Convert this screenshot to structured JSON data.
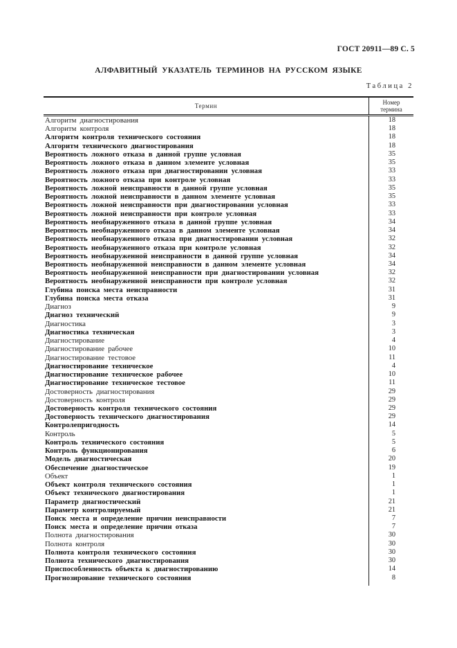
{
  "page": {
    "header": "ГОСТ 20911—89 С. 5",
    "title": "АЛФАВИТНЫЙ УКАЗАТЕЛЬ ТЕРМИНОВ НА РУССКОМ ЯЗЫКЕ",
    "table_label": "Таблица 2"
  },
  "table": {
    "col_term_header": "Термин",
    "col_num_header_line1": "Номер",
    "col_num_header_line2": "термина",
    "rows": [
      {
        "term": "Алгоритм диагностирования",
        "num": 18,
        "bold": false
      },
      {
        "term": "Алгоритм контроля",
        "num": 18,
        "bold": false
      },
      {
        "term": "Алгоритм контроля технического состояния",
        "num": 18,
        "bold": true
      },
      {
        "term": "Алгоритм технического диагностирования",
        "num": 18,
        "bold": true
      },
      {
        "term": "Вероятность ложного отказа в данной группе условная",
        "num": 35,
        "bold": true
      },
      {
        "term": "Вероятность ложного отказа в данном элементе условная",
        "num": 35,
        "bold": true
      },
      {
        "term": "Вероятность ложного отказа при диагностировании условная",
        "num": 33,
        "bold": true
      },
      {
        "term": "Вероятность ложного отказа при контроле условная",
        "num": 33,
        "bold": true
      },
      {
        "term": "Вероятность ложной неисправности в данной группе условная",
        "num": 35,
        "bold": true
      },
      {
        "term": "Вероятность ложной неисправности в данном элементе условная",
        "num": 35,
        "bold": true
      },
      {
        "term": "Вероятность ложной неисправности при диагностировании условная",
        "num": 33,
        "bold": true
      },
      {
        "term": "Вероятность ложной неисправности при контроле условная",
        "num": 33,
        "bold": true
      },
      {
        "term": "Вероятность необнаруженного отказа в данной группе условная",
        "num": 34,
        "bold": true
      },
      {
        "term": "Вероятность необнаруженного отказа в данном элементе условная",
        "num": 34,
        "bold": true
      },
      {
        "term": "Вероятность необнаруженного отказа при диагностировании условная",
        "num": 32,
        "bold": true
      },
      {
        "term": "Вероятность необнаруженного отказа при контроле условная",
        "num": 32,
        "bold": true
      },
      {
        "term": "Вероятность необнаруженной неисправности в данной группе условная",
        "num": 34,
        "bold": true
      },
      {
        "term": "Вероятность необнаруженной неисправности в данном элементе условная",
        "num": 34,
        "bold": true
      },
      {
        "term": "Вероятность необнаруженной неисправности при диагностировании условная",
        "num": 32,
        "bold": true
      },
      {
        "term": "Вероятность необнаруженной неисправности при контроле условная",
        "num": 32,
        "bold": true
      },
      {
        "term": "Глубина поиска места неисправности",
        "num": 31,
        "bold": true
      },
      {
        "term": "Глубина поиска места отказа",
        "num": 31,
        "bold": true
      },
      {
        "term": "Диагноз",
        "num": 9,
        "bold": false
      },
      {
        "term": "Диагноз технический",
        "num": 9,
        "bold": true
      },
      {
        "term": "Диагностика",
        "num": 3,
        "bold": false
      },
      {
        "term": "Диагностика техническая",
        "num": 3,
        "bold": true
      },
      {
        "term": "Диагностирование",
        "num": 4,
        "bold": false
      },
      {
        "term": "Диагностирование рабочее",
        "num": 10,
        "bold": false
      },
      {
        "term": "Диагностирование тестовое",
        "num": 11,
        "bold": false
      },
      {
        "term": "Диагностирование техническое",
        "num": 4,
        "bold": true
      },
      {
        "term": "Диагностирование техническое рабочее",
        "num": 10,
        "bold": true
      },
      {
        "term": "Диагностирование техническое тестовое",
        "num": 11,
        "bold": true
      },
      {
        "term": "Достоверность диагностирования",
        "num": 29,
        "bold": false
      },
      {
        "term": "Достоверность контроля",
        "num": 29,
        "bold": false
      },
      {
        "term": "Достоверность контроля технического состояния",
        "num": 29,
        "bold": true
      },
      {
        "term": "Достоверность технического диагностирования",
        "num": 29,
        "bold": true
      },
      {
        "term": "Контролепригодность",
        "num": 14,
        "bold": true
      },
      {
        "term": "Контроль",
        "num": 5,
        "bold": false
      },
      {
        "term": "Контроль технического состояния",
        "num": 5,
        "bold": true
      },
      {
        "term": "Контроль функционирования",
        "num": 6,
        "bold": true
      },
      {
        "term": "Модель диагностическая",
        "num": 20,
        "bold": true
      },
      {
        "term": "Обеспечение диагностическое",
        "num": 19,
        "bold": true
      },
      {
        "term": "Объект",
        "num": 1,
        "bold": false
      },
      {
        "term": "Объект контроля технического состояния",
        "num": 1,
        "bold": true
      },
      {
        "term": "Объект технического диагностирования",
        "num": 1,
        "bold": true
      },
      {
        "term": "Параметр диагностический",
        "num": 21,
        "bold": true
      },
      {
        "term": "Параметр контролируемый",
        "num": 21,
        "bold": true
      },
      {
        "term": "Поиск места и определение причин неисправности",
        "num": 7,
        "bold": true
      },
      {
        "term": "Поиск места и определение причин отказа",
        "num": 7,
        "bold": true
      },
      {
        "term": "Полнота диагностирования",
        "num": 30,
        "bold": false
      },
      {
        "term": "Полнота контроля",
        "num": 30,
        "bold": false
      },
      {
        "term": "Полнота контроля технического состояния",
        "num": 30,
        "bold": true
      },
      {
        "term": "Полнота технического диагностирования",
        "num": 30,
        "bold": true
      },
      {
        "term": "Приспособленность объекта к диагностированию",
        "num": 14,
        "bold": true
      },
      {
        "term": "Прогнозирование технического состояния",
        "num": 8,
        "bold": true
      }
    ]
  }
}
